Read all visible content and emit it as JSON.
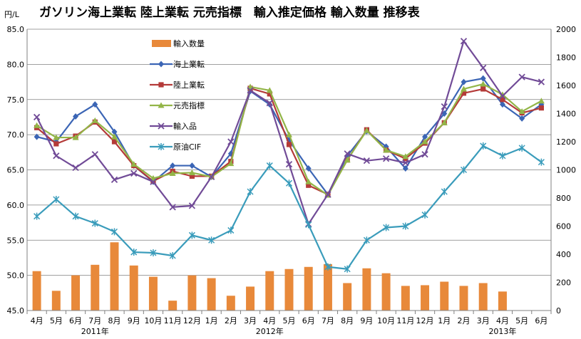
{
  "chart_data": {
    "type": "line",
    "title": "ガソリン海上業転 陸上業転 元売指標　輸入推定価格 輸入数量 推移表",
    "ylabel": "円/L",
    "ylim": [
      45,
      85
    ],
    "y2lim": [
      0,
      2000
    ],
    "yticks": [
      "85.0",
      "80.0",
      "75.0",
      "70.0",
      "65.0",
      "60.0",
      "55.0",
      "50.0",
      "45.0"
    ],
    "y2ticks": [
      "2000",
      "1800",
      "1600",
      "1400",
      "1200",
      "1000",
      "800",
      "600",
      "400",
      "200",
      "0"
    ],
    "categories": [
      "4月",
      "5月",
      "6月",
      "7月",
      "8月",
      "9月",
      "10月",
      "11月",
      "12月",
      "1月",
      "2月",
      "3月",
      "4月",
      "5月",
      "6月",
      "7月",
      "8月",
      "9月",
      "10月",
      "11月",
      "12月",
      "1月",
      "2月",
      "3月",
      "4月",
      "5月",
      "6月"
    ],
    "year_labels": [
      {
        "text": "2011年",
        "index": 3
      },
      {
        "text": "2012年",
        "index": 12
      },
      {
        "text": "2013年",
        "index": 24
      }
    ],
    "grid": true,
    "legend_position": "top-left",
    "bars": {
      "name": "輸入数量",
      "color": "#e8893a",
      "values": [
        280,
        140,
        250,
        325,
        485,
        320,
        240,
        70,
        250,
        230,
        105,
        170,
        280,
        295,
        310,
        330,
        195,
        300,
        265,
        175,
        180,
        205,
        175,
        195,
        135,
        null,
        null
      ]
    },
    "series": [
      {
        "name": "海上業転",
        "color": "#3b65b5",
        "marker": "diamond",
        "values": [
          69.7,
          69.0,
          72.6,
          74.3,
          70.4,
          65.6,
          63.3,
          65.6,
          65.6,
          64.0,
          67.3,
          76.2,
          74.3,
          69.2,
          65.2,
          61.5,
          67.0,
          70.5,
          68.3,
          65.2,
          69.7,
          73.0,
          77.5,
          78.0,
          74.3,
          72.3,
          74.3
        ]
      },
      {
        "name": "陸上業転",
        "color": "#b43a38",
        "marker": "square",
        "values": [
          71.0,
          68.7,
          69.8,
          71.8,
          69.0,
          65.6,
          63.4,
          64.8,
          64.1,
          64.1,
          66.2,
          76.6,
          75.8,
          68.6,
          62.8,
          61.5,
          66.4,
          70.7,
          67.8,
          66.6,
          68.8,
          71.7,
          75.9,
          76.5,
          75.0,
          73.1,
          73.8
        ]
      },
      {
        "name": "元売指標",
        "color": "#93b548",
        "marker": "triangle",
        "values": [
          71.3,
          69.6,
          69.6,
          72.0,
          69.7,
          65.8,
          63.8,
          64.5,
          64.6,
          64.0,
          65.9,
          76.8,
          76.3,
          70.0,
          63.3,
          61.4,
          66.4,
          70.6,
          67.8,
          66.9,
          69.0,
          71.7,
          76.5,
          77.2,
          75.7,
          73.3,
          74.8
        ]
      },
      {
        "name": "輸入品",
        "color": "#714b97",
        "marker": "x",
        "values": [
          72.5,
          67.0,
          65.3,
          67.2,
          63.6,
          64.5,
          63.3,
          59.7,
          59.9,
          64.0,
          69.0,
          76.3,
          74.5,
          65.8,
          57.3,
          61.5,
          67.3,
          66.3,
          66.6,
          66.0,
          67.2,
          74.0,
          83.3,
          79.5,
          75.5,
          78.2,
          77.5
        ]
      },
      {
        "name": "原油CIF",
        "color": "#3a9cbb",
        "marker": "asterisk",
        "values": [
          58.4,
          60.8,
          58.4,
          57.4,
          56.2,
          53.3,
          53.2,
          52.8,
          55.7,
          55.0,
          56.4,
          61.9,
          65.6,
          63.1,
          57.2,
          51.2,
          50.9,
          55.0,
          56.8,
          57.0,
          58.6,
          61.9,
          65.0,
          68.4,
          67.0,
          68.1,
          66.1
        ]
      }
    ]
  }
}
